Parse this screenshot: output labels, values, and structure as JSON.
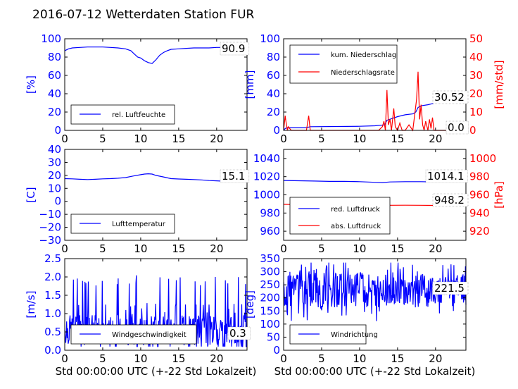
{
  "title": "2016-07-12 Wetterdaten Station FUR\u0002",
  "colors": {
    "primary": "#0000ff",
    "secondary": "#ff0000",
    "axis": "#000000"
  },
  "chart_data": [
    {
      "id": "humidity",
      "type": "line",
      "xlim": [
        0,
        24
      ],
      "ylim": [
        0,
        100
      ],
      "xticks": [
        "0",
        "5",
        "10",
        "15",
        "20"
      ],
      "yticks": [
        "0",
        "20",
        "40",
        "60",
        "80",
        "100"
      ],
      "ylabel": "[%]",
      "xlabel": "",
      "legend": {
        "placement": "lower-left",
        "entries": [
          "rel. Luftfeuchte"
        ]
      },
      "annotation": "90.9",
      "series": [
        {
          "name": "rel. Luftfeuchte",
          "color": "#0000ff",
          "x": [
            0,
            0.5,
            1,
            2,
            3,
            4,
            5,
            6,
            7,
            8,
            8.7,
            9.2,
            9.6,
            10,
            10.5,
            11,
            11.5,
            12,
            12.5,
            13,
            13.5,
            14,
            15,
            16,
            17,
            18,
            19,
            20,
            21,
            22,
            23,
            24
          ],
          "y": [
            87,
            89,
            90,
            90.5,
            91,
            91,
            91,
            90.5,
            90,
            89,
            87,
            83,
            80,
            79,
            76,
            74,
            73,
            77,
            82,
            85,
            87,
            88.5,
            89,
            89.5,
            90,
            90,
            90,
            90.5,
            90.5,
            90.8,
            90.9,
            90.9
          ]
        }
      ]
    },
    {
      "id": "precipitation",
      "type": "line",
      "xlim": [
        0,
        24
      ],
      "ylim": [
        0,
        100
      ],
      "ylim_right": [
        0,
        50
      ],
      "xticks": [
        "0",
        "5",
        "10",
        "15",
        "20"
      ],
      "yticks": [
        "0",
        "20",
        "40",
        "60",
        "80",
        "100"
      ],
      "yticks_right": [
        "0",
        "10",
        "20",
        "30",
        "40",
        "50"
      ],
      "ylabel": "[mm]",
      "ylabel_right": "[mm/std]",
      "xlabel": "",
      "legend": {
        "placement": "upper-left",
        "entries": [
          "kum. Niederschlag",
          "Niederschlagsrate"
        ]
      },
      "annotations": [
        "30.52",
        "0.0"
      ],
      "series": [
        {
          "name": "kum. Niederschlag",
          "color": "#0000ff",
          "axis": "left",
          "x": [
            0,
            0.2,
            0.5,
            3,
            3.5,
            10,
            12,
            13.3,
            13.6,
            15,
            16,
            17,
            17.4,
            17.7,
            18.2,
            19,
            19.5,
            20,
            21,
            22,
            23,
            24
          ],
          "y": [
            0,
            2,
            3,
            3,
            4,
            4.5,
            5,
            6,
            11,
            15,
            17,
            18,
            20,
            25,
            27,
            28,
            29,
            30,
            30.4,
            30.5,
            30.52,
            30.52
          ]
        },
        {
          "name": "Niederschlagsrate",
          "color": "#ff0000",
          "axis": "right",
          "x": [
            0,
            0.1,
            0.2,
            0.3,
            0.5,
            0.6,
            1,
            3,
            3.3,
            3.5,
            3.7,
            4,
            10,
            12.5,
            13,
            13.2,
            13.4,
            13.6,
            13.8,
            14,
            14.2,
            14.4,
            14.5,
            14.7,
            15,
            15.3,
            15.6,
            16,
            16.5,
            17,
            17.3,
            17.5,
            17.7,
            17.9,
            18.1,
            18.3,
            18.5,
            18.7,
            19,
            19.2,
            19.4,
            19.6,
            19.8,
            20,
            24
          ],
          "y": [
            0,
            4,
            8,
            5,
            0,
            2,
            0,
            0,
            8,
            0,
            0,
            0,
            0,
            0,
            2,
            5,
            0,
            22,
            3,
            6,
            0,
            8,
            12,
            2,
            0,
            4,
            0,
            0,
            3,
            0,
            10,
            17,
            32,
            6,
            14,
            3,
            0,
            5,
            0,
            6,
            1,
            7,
            0,
            0,
            0
          ]
        }
      ]
    },
    {
      "id": "temperature",
      "type": "line",
      "xlim": [
        0,
        24
      ],
      "ylim": [
        -30,
        40
      ],
      "xticks": [
        "0",
        "5",
        "10",
        "15",
        "20"
      ],
      "yticks": [
        "−30",
        "−20",
        "−10",
        "0",
        "10",
        "20",
        "30",
        "40"
      ],
      "ylabel": "[C]",
      "xlabel": "",
      "legend": {
        "placement": "lower-left",
        "entries": [
          "Lufttemperatur"
        ]
      },
      "annotation": "15.1",
      "series": [
        {
          "name": "Lufttemperatur",
          "color": "#0000ff",
          "x": [
            0,
            1,
            2,
            3,
            4,
            5,
            6,
            7,
            8,
            9,
            10,
            10.5,
            11,
            11.5,
            12,
            13,
            14,
            15,
            16,
            17,
            18,
            19,
            20,
            21,
            22,
            23,
            24
          ],
          "y": [
            17.5,
            17.3,
            17,
            16.8,
            17,
            17.3,
            17.5,
            17.8,
            18.3,
            19.5,
            20.5,
            21,
            21.2,
            21,
            20,
            18.8,
            17.5,
            17.2,
            17,
            16.8,
            16.5,
            16,
            15.8,
            15.5,
            15.3,
            15.1,
            15.1
          ]
        }
      ]
    },
    {
      "id": "pressure",
      "type": "line",
      "xlim": [
        0,
        24
      ],
      "ylim": [
        950,
        1050
      ],
      "ylim_right": [
        910,
        1010
      ],
      "xticks": [
        "0",
        "5",
        "10",
        "15",
        "20"
      ],
      "yticks": [
        "960",
        "980",
        "1000",
        "1020",
        "1040"
      ],
      "yticks_right": [
        "920",
        "940",
        "960",
        "980",
        "1000"
      ],
      "ylabel": "",
      "ylabel_right": "[hPa]",
      "xlabel": "",
      "legend": {
        "placement": "lower-left",
        "entries": [
          "red. Luftdruck",
          "abs. Luftdruck"
        ]
      },
      "annotations": [
        "1014.1",
        "948.2"
      ],
      "series": [
        {
          "name": "red. Luftdruck",
          "color": "#0000ff",
          "axis": "left",
          "x": [
            0,
            2,
            4,
            6,
            8,
            10,
            12,
            13,
            14,
            16,
            18,
            20,
            22,
            24
          ],
          "y": [
            1015.8,
            1015.5,
            1015.2,
            1014.8,
            1014.8,
            1014.5,
            1013.8,
            1013.5,
            1014.2,
            1014.5,
            1014.5,
            1014.3,
            1014.2,
            1014.1
          ]
        },
        {
          "name": "abs. Luftdruck",
          "color": "#ff0000",
          "axis": "right",
          "x": [
            0,
            2,
            4,
            6,
            8,
            10,
            12,
            14,
            16,
            18,
            20,
            22,
            24
          ],
          "y": [
            949.5,
            949.3,
            949.2,
            949,
            948.9,
            948.7,
            948.5,
            948.5,
            948.6,
            948.5,
            948.4,
            948.3,
            948.2
          ]
        }
      ]
    },
    {
      "id": "windspeed",
      "type": "line",
      "xlim": [
        0,
        24
      ],
      "ylim": [
        0,
        2.5
      ],
      "xticks": [
        "0",
        "5",
        "10",
        "15",
        "20"
      ],
      "yticks": [
        "0.0",
        "0.5",
        "1.0",
        "1.5",
        "2.0",
        "2.5"
      ],
      "ylabel": "[m/s]",
      "xlabel": "Std 00:00:00 UTC (+-22 Std Lokalzeit)",
      "legend": {
        "placement": "lower-left",
        "entries": [
          "Windgeschwindigkeit"
        ]
      },
      "annotation": "0.3",
      "series": [
        {
          "name": "Windgeschwindigkeit",
          "color": "#0000ff",
          "noise": true,
          "seed": 7,
          "base": 0.55,
          "spread": 0.75,
          "min": 0.1,
          "max": 2.05,
          "points": 380
        }
      ]
    },
    {
      "id": "winddirection",
      "type": "line",
      "xlim": [
        0,
        24
      ],
      "ylim": [
        0,
        350
      ],
      "xticks": [
        "0",
        "5",
        "10",
        "15",
        "20"
      ],
      "yticks": [
        "0",
        "50",
        "100",
        "150",
        "200",
        "250",
        "300",
        "350"
      ],
      "ylabel": "[deg]",
      "xlabel": "Std 00:00:00 UTC (+-22 Std Lokalzeit)",
      "legend": {
        "placement": "lower-left",
        "entries": [
          "Windrichtung"
        ]
      },
      "annotation": "221.5",
      "series": [
        {
          "name": "Windrichtung",
          "color": "#0000ff",
          "noise": true,
          "seed": 13,
          "base": 230,
          "spread": 120,
          "min": 60,
          "max": 335,
          "points": 380
        }
      ]
    }
  ]
}
